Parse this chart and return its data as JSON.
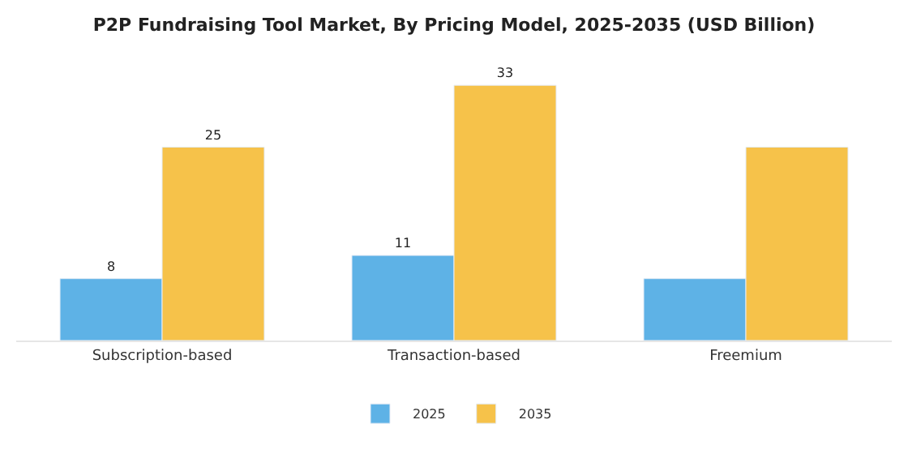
{
  "chart_data": {
    "type": "bar",
    "title": "P2P Fundraising Tool Market, By Pricing Model, 2025-2035 (USD Billion)",
    "categories": [
      "Subscription-based",
      "Transaction-based",
      "Freemium"
    ],
    "series": [
      {
        "name": "2025",
        "color": "#5eb2e6",
        "values": [
          8,
          11,
          8
        ],
        "value_labels": [
          "8",
          "11",
          null
        ]
      },
      {
        "name": "2035",
        "color": "#f6c24a",
        "values": [
          25,
          33,
          25
        ],
        "value_labels": [
          "25",
          "33",
          null
        ]
      }
    ],
    "legend": "bottom"
  }
}
